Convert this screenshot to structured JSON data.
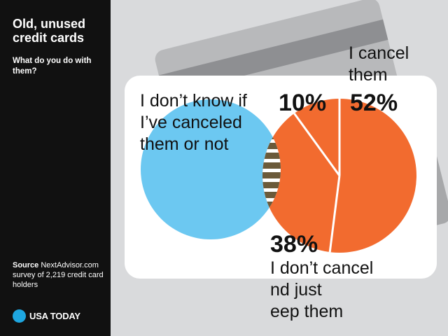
{
  "header": {
    "title": "Old, unused credit cards",
    "subtitle": "What do you do with them?"
  },
  "footer": {
    "source_label": "Source",
    "source_text": "NextAdvisor.com survey of 2,219 credit card holders",
    "brand": "USA TODAY"
  },
  "chart_data": {
    "type": "pie",
    "title": "Old, unused credit cards",
    "subtitle": "What do you do with them?",
    "categories": [
      "I cancel them",
      "I don’t cancel and just keep them",
      "I don’t know if I’ve canceled them or not"
    ],
    "values": [
      52,
      38,
      10
    ],
    "value_labels": [
      "52%",
      "38%",
      "10%"
    ],
    "colors": [
      "#f26b2f",
      "#6cc8f1",
      "#f26b2f"
    ],
    "overlap_fill": "#6b5a3a"
  }
}
